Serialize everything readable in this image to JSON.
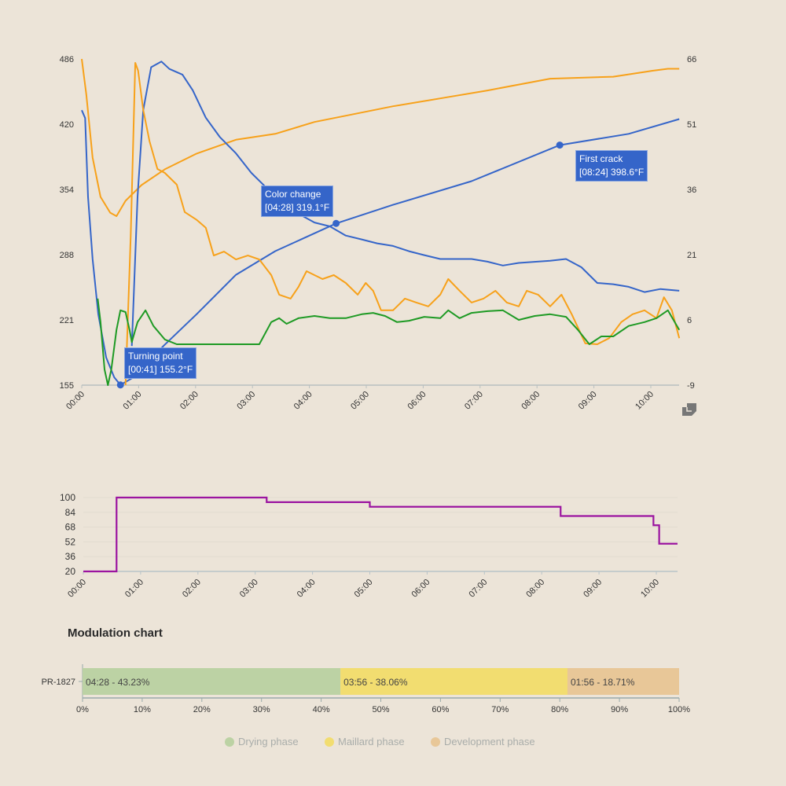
{
  "colors": {
    "bean_temp": "#3565c9",
    "env_temp": "#f7a11a",
    "ror_bean": "#3565c9",
    "ror_env": "#f7a11a",
    "ror_green": "#1e9a24",
    "modulation": "#9b14a0",
    "drying": "#bcd2a4",
    "maillard": "#f2dd70",
    "development": "#e8c798",
    "annotation_bg": "#3565c9"
  },
  "chart_data": [
    {
      "type": "line",
      "title": "",
      "x_ticks": [
        "00:00",
        "01:00",
        "02:00",
        "03:00",
        "04:00",
        "05:00",
        "06:00",
        "07:00",
        "08:00",
        "09:00",
        "10:00"
      ],
      "xlim_minutes": [
        0,
        10.5
      ],
      "left_axis": {
        "ticks": [
          "155",
          "221",
          "288",
          "354",
          "420",
          "486"
        ],
        "ylim": [
          155,
          486
        ]
      },
      "right_axis": {
        "ticks": [
          "-9",
          "6",
          "21",
          "36",
          "51",
          "66"
        ],
        "ylim": [
          -9,
          66
        ]
      },
      "series": [
        {
          "name": "bean-temp",
          "axis": "left",
          "color_key": "bean_temp",
          "x": [
            0,
            0.06,
            0.11,
            0.19,
            0.29,
            0.43,
            0.57,
            0.68,
            0.91,
            1.44,
            2.02,
            2.71,
            3.4,
            4.47,
            5.47,
            6.85,
            8.4,
            9.61,
            10.5
          ],
          "y": [
            434,
            426,
            346,
            283,
            227,
            183,
            163,
            155.2,
            163,
            195,
            227,
            267,
            291,
            319.1,
            338,
            362,
            398.6,
            410,
            425
          ]
        },
        {
          "name": "env-temp",
          "axis": "left",
          "color_key": "env_temp",
          "x": [
            0,
            0.08,
            0.19,
            0.33,
            0.5,
            0.61,
            0.77,
            1.05,
            1.46,
            2.02,
            2.71,
            3.4,
            4.09,
            4.78,
            5.47,
            6.3,
            7.13,
            8.23,
            9.34,
            10.03,
            10.3,
            10.5
          ],
          "y": [
            486,
            450,
            386,
            346,
            330,
            326.5,
            342,
            358,
            374,
            390,
            404,
            410,
            422,
            430,
            438,
            446,
            454,
            466,
            468,
            474,
            476,
            476
          ]
        },
        {
          "name": "ror-bean",
          "axis": "right",
          "color_key": "ror_bean",
          "x": [
            0.88,
            0.98,
            1.08,
            1.22,
            1.4,
            1.54,
            1.77,
            1.95,
            2.18,
            2.43,
            2.71,
            2.98,
            3.26,
            3.54,
            3.81,
            4.09,
            4.36,
            4.64,
            4.92,
            5.19,
            5.47,
            5.75,
            6.02,
            6.3,
            6.85,
            7.13,
            7.4,
            7.68,
            8.23,
            8.51,
            8.78,
            9.06,
            9.34,
            9.61,
            9.89,
            10.17,
            10.5
          ],
          "y": [
            0,
            34.3,
            54.2,
            64.1,
            65.4,
            63.7,
            62.4,
            58.8,
            52.5,
            48,
            44.3,
            39.8,
            36.2,
            32.6,
            30.4,
            28.4,
            27.5,
            25.4,
            24.5,
            23.6,
            23,
            21.8,
            20.9,
            20,
            20,
            19.4,
            18.5,
            19.1,
            19.6,
            20,
            18.1,
            14.5,
            14.2,
            13.6,
            12.4,
            13.1,
            12.7
          ]
        },
        {
          "name": "ror-env",
          "axis": "right",
          "color_key": "ror_env",
          "x": [
            0.77,
            0.86,
            0.94,
            0.99,
            1.08,
            1.19,
            1.33,
            1.46,
            1.67,
            1.81,
            2.02,
            2.18,
            2.32,
            2.5,
            2.71,
            2.92,
            3.12,
            3.33,
            3.47,
            3.67,
            3.81,
            3.95,
            4.09,
            4.23,
            4.43,
            4.64,
            4.85,
            4.99,
            5.12,
            5.26,
            5.47,
            5.68,
            5.88,
            6.09,
            6.3,
            6.44,
            6.64,
            6.85,
            7.06,
            7.27,
            7.47,
            7.68,
            7.82,
            8.02,
            8.23,
            8.43,
            8.61,
            8.85,
            9.06,
            9.27,
            9.48,
            9.68,
            9.89,
            10.1,
            10.23,
            10.37,
            10.5
          ],
          "y": [
            -9,
            25.3,
            65.1,
            63.3,
            54.3,
            47.1,
            40.7,
            39.8,
            37.1,
            30.8,
            29,
            27.2,
            20.8,
            21.7,
            19.9,
            20.8,
            19.9,
            16.3,
            11.8,
            10.9,
            13.6,
            17.2,
            16.3,
            15.4,
            16.3,
            14.5,
            11.8,
            14.5,
            12.7,
            8.2,
            8.2,
            10.9,
            10,
            9.1,
            11.8,
            15.4,
            12.7,
            10,
            10.9,
            12.7,
            10,
            9.1,
            12.7,
            11.8,
            9.1,
            11.8,
            7.3,
            0.6,
            0.4,
            1.8,
            5.5,
            7.3,
            8.2,
            6.4,
            11.2,
            8.2,
            1.8
          ]
        },
        {
          "name": "ror-green",
          "axis": "right",
          "color_key": "ror_green",
          "x": [
            0.28,
            0.33,
            0.4,
            0.46,
            0.52,
            0.61,
            0.68,
            0.77,
            0.84,
            0.88,
            0.98,
            1.12,
            1.26,
            1.46,
            1.67,
            2.02,
            3.12,
            3.33,
            3.47,
            3.6,
            3.81,
            4.09,
            4.36,
            4.64,
            4.92,
            5.12,
            5.33,
            5.54,
            5.75,
            6.02,
            6.3,
            6.44,
            6.64,
            6.85,
            7.13,
            7.4,
            7.68,
            7.96,
            8.23,
            8.51,
            8.72,
            8.92,
            9.13,
            9.34,
            9.61,
            9.89,
            10.1,
            10.3,
            10.5
          ],
          "y": [
            10.9,
            5.5,
            -5.4,
            -9,
            -5.4,
            3.7,
            8.2,
            7.8,
            3.7,
            0.9,
            5.5,
            8.2,
            4.6,
            1.5,
            0.4,
            0.4,
            0.4,
            5.5,
            6.4,
            5.1,
            6.4,
            6.9,
            6.4,
            6.4,
            7.3,
            7.6,
            6.9,
            5.5,
            5.8,
            6.7,
            6.4,
            8.2,
            6.4,
            7.6,
            8,
            8.2,
            6,
            6.9,
            7.3,
            6.7,
            3.7,
            0.4,
            2.2,
            2.2,
            4.6,
            5.5,
            6.4,
            8.2,
            3.7
          ]
        }
      ],
      "annotations": [
        {
          "title": "Turning point",
          "detail": "[00:41] 155.2°F",
          "x": 0.68,
          "y": 155.2
        },
        {
          "title": "Color change",
          "detail": "[04:28] 319.1°F",
          "x": 4.47,
          "y": 319.1
        },
        {
          "title": "First crack",
          "detail": "[08:24] 398.6°F",
          "x": 8.4,
          "y": 398.6
        }
      ]
    },
    {
      "type": "line",
      "title": "",
      "x_ticks": [
        "00:00",
        "01:00",
        "02:00",
        "03:00",
        "04:00",
        "05:00",
        "06:00",
        "07:00",
        "08:00",
        "09:00",
        "10:00"
      ],
      "xlim_minutes": [
        0,
        10.37
      ],
      "y_ticks": [
        "20",
        "36",
        "52",
        "68",
        "84",
        "100"
      ],
      "ylim": [
        20,
        100
      ],
      "series": [
        {
          "name": "modulation",
          "step": true,
          "x": [
            0,
            0.58,
            3.2,
            5.0,
            8.33,
            9.95,
            10.05,
            10.37
          ],
          "y": [
            20,
            100,
            95,
            90,
            80,
            70,
            50,
            50
          ]
        }
      ]
    },
    {
      "type": "bar",
      "orientation": "horizontal-stacked",
      "title": "Modulation chart",
      "categories": [
        "PR-1827"
      ],
      "x_ticks": [
        "0%",
        "10%",
        "20%",
        "30%",
        "40%",
        "50%",
        "60%",
        "70%",
        "80%",
        "90%",
        "100%"
      ],
      "series": [
        {
          "name": "Drying phase",
          "color_key": "drying",
          "value": 43.23,
          "label": "04:28 - 43.23%"
        },
        {
          "name": "Maillard phase",
          "color_key": "maillard",
          "value": 38.06,
          "label": "03:56 - 38.06%"
        },
        {
          "name": "Development phase",
          "color_key": "development",
          "value": 18.71,
          "label": "01:56 - 18.71%"
        }
      ],
      "legend_position": "bottom"
    }
  ]
}
